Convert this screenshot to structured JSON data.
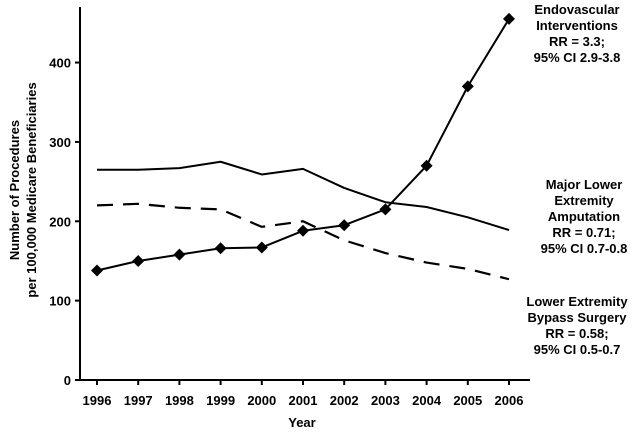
{
  "chart_data": {
    "type": "line",
    "title": "",
    "xlabel": "Year",
    "ylabel_lines": [
      "Number of Procedures",
      "per 100,000 Medicare Beneficiaries"
    ],
    "categories": [
      "1996",
      "1997",
      "1998",
      "1999",
      "2000",
      "2001",
      "2002",
      "2003",
      "2004",
      "2005",
      "2006"
    ],
    "ylim": [
      0,
      470
    ],
    "yticks": [
      0,
      100,
      200,
      300,
      400
    ],
    "grid": false,
    "series": [
      {
        "key": "endovascular",
        "style": "solid-diamond",
        "values": [
          138,
          150,
          158,
          166,
          167,
          188,
          195,
          215,
          270,
          370,
          455
        ],
        "annotation": [
          "Endovascular",
          "Interventions",
          "RR = 3.3;",
          "95% CI 2.9-3.8"
        ]
      },
      {
        "key": "amputation",
        "style": "solid",
        "values": [
          265,
          265,
          267,
          275,
          259,
          266,
          242,
          224,
          218,
          205,
          189
        ],
        "annotation": [
          "Major Lower",
          "Extremity",
          "Amputation",
          "RR = 0.71;",
          "95% CI 0.7-0.8"
        ]
      },
      {
        "key": "bypass",
        "style": "dashed",
        "values": [
          220,
          222,
          217,
          215,
          193,
          200,
          176,
          160,
          148,
          140,
          127
        ],
        "annotation": [
          "Lower Extremity",
          "Bypass Surgery",
          "RR = 0.58;",
          "95% CI 0.5-0.7"
        ]
      }
    ]
  }
}
